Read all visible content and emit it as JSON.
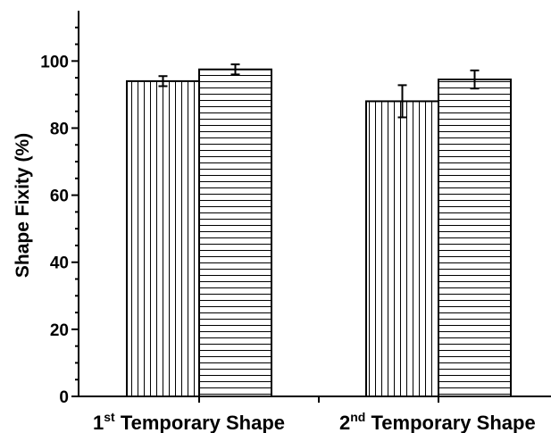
{
  "chart_data": {
    "type": "bar",
    "ylabel": "Shape Fixity (%)",
    "ylim": [
      0,
      115
    ],
    "yticks": [
      "0",
      "20",
      "40",
      "60",
      "80",
      "100"
    ],
    "categories": [
      {
        "base": "1",
        "sup": "st",
        "rest": " Temporary Shape"
      },
      {
        "base": "2",
        "sup": "nd",
        "rest": " Temporary Shape"
      }
    ],
    "series": [
      {
        "pattern": "vertical-hatch",
        "values": [
          94.0,
          88.0
        ],
        "errors": [
          1.5,
          4.8
        ]
      },
      {
        "pattern": "horizontal-hatch",
        "values": [
          97.5,
          94.5
        ],
        "errors": [
          1.5,
          2.7
        ]
      }
    ],
    "grid": false,
    "colors": {
      "axis": "#000000",
      "bar_fill": "#ffffff",
      "hatch": "#000000"
    }
  }
}
